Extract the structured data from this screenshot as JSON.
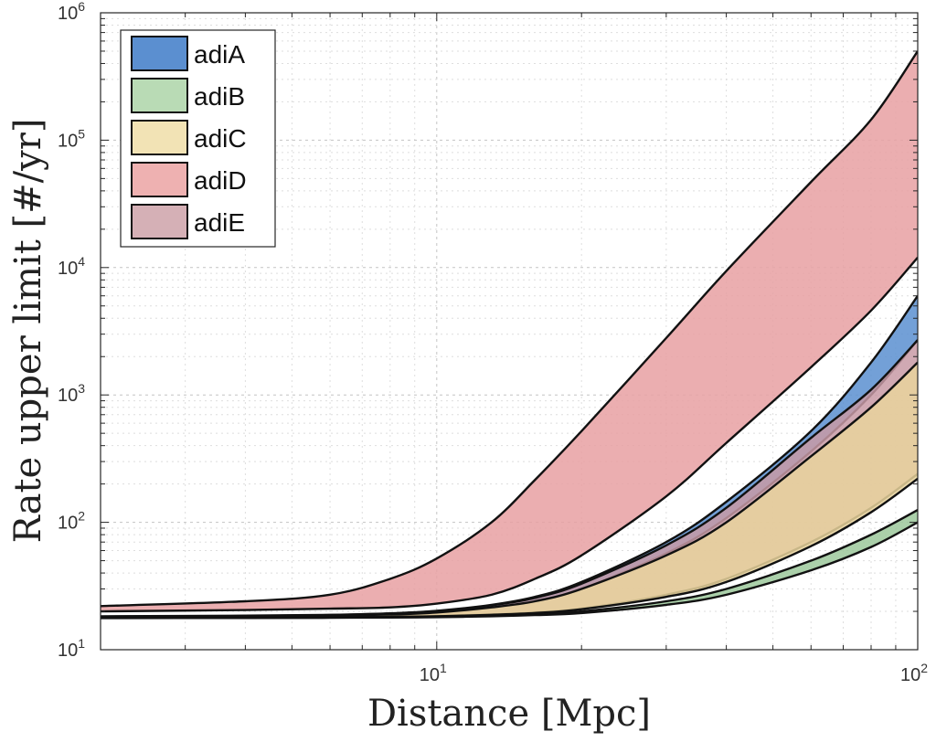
{
  "chart_data": {
    "type": "area",
    "title": "",
    "xlabel": "Distance [Mpc]",
    "ylabel": "Rate upper limit [#/yr]",
    "xscale": "log",
    "yscale": "log",
    "xlim": [
      2,
      100
    ],
    "ylim": [
      10,
      1000000
    ],
    "grid": true,
    "legend_position": "top-left",
    "x_ticks": [
      {
        "base": "10",
        "exp": "1"
      },
      {
        "base": "10",
        "exp": "2"
      }
    ],
    "y_ticks": [
      {
        "base": "10",
        "exp": "1"
      },
      {
        "base": "10",
        "exp": "2"
      },
      {
        "base": "10",
        "exp": "3"
      },
      {
        "base": "10",
        "exp": "4"
      },
      {
        "base": "10",
        "exp": "5"
      },
      {
        "base": "10",
        "exp": "6"
      }
    ],
    "x": [
      2,
      4,
      6,
      8,
      10,
      13,
      16,
      20,
      30,
      40,
      60,
      80,
      100
    ],
    "series": [
      {
        "name": "adiD",
        "color": "#e8a0a2",
        "upper": [
          22,
          24,
          27,
          36,
          52,
          100,
          215,
          520,
          2800,
          9400,
          47000,
          145000,
          500000
        ],
        "lower": [
          20,
          20.5,
          21,
          21.5,
          23,
          27,
          36,
          55,
          160,
          420,
          1650,
          4600,
          12000
        ]
      },
      {
        "name": "adiA",
        "color": "#5b8fd0",
        "upper": [
          18.3,
          18.5,
          18.8,
          19.3,
          20.2,
          22.5,
          26,
          34,
          70,
          145,
          520,
          1800,
          6000
        ],
        "lower": [
          18.1,
          18.3,
          18.5,
          18.9,
          19.6,
          21.3,
          24,
          30,
          57,
          108,
          360,
          1000,
          2700
        ]
      },
      {
        "name": "adiE",
        "color": "#c89aa6",
        "upper": [
          18.2,
          18.4,
          18.7,
          19.2,
          20.1,
          22.3,
          25.5,
          33,
          66,
          130,
          460,
          1100,
          2700
        ],
        "lower": [
          17.9,
          18.0,
          18.1,
          18.2,
          18.4,
          18.9,
          19.6,
          21,
          27,
          36,
          70,
          130,
          240
        ]
      },
      {
        "name": "adiC",
        "color": "#e9d39c",
        "upper": [
          18.0,
          18.2,
          18.5,
          18.9,
          19.6,
          21.5,
          24,
          30,
          55,
          100,
          330,
          800,
          1800
        ],
        "lower": [
          17.8,
          17.9,
          18.0,
          18.1,
          18.3,
          18.8,
          19.4,
          20.8,
          26,
          34,
          65,
          120,
          220
        ]
      },
      {
        "name": "adiB",
        "color": "#9cc89b",
        "upper": [
          17.8,
          17.9,
          18.0,
          18.1,
          18.25,
          18.6,
          19.1,
          20.0,
          24,
          30,
          50,
          80,
          125
        ],
        "lower": [
          17.7,
          17.75,
          17.8,
          17.9,
          18.0,
          18.3,
          18.7,
          19.4,
          22.5,
          27,
          42,
          64,
          100
        ]
      }
    ],
    "legend": [
      {
        "name": "adiA",
        "color": "#5b8fd0"
      },
      {
        "name": "adiB",
        "color": "#b9dbb5"
      },
      {
        "name": "adiC",
        "color": "#f2e3b5"
      },
      {
        "name": "adiD",
        "color": "#eeb1b1"
      },
      {
        "name": "adiE",
        "color": "#d5b0b6"
      }
    ]
  }
}
